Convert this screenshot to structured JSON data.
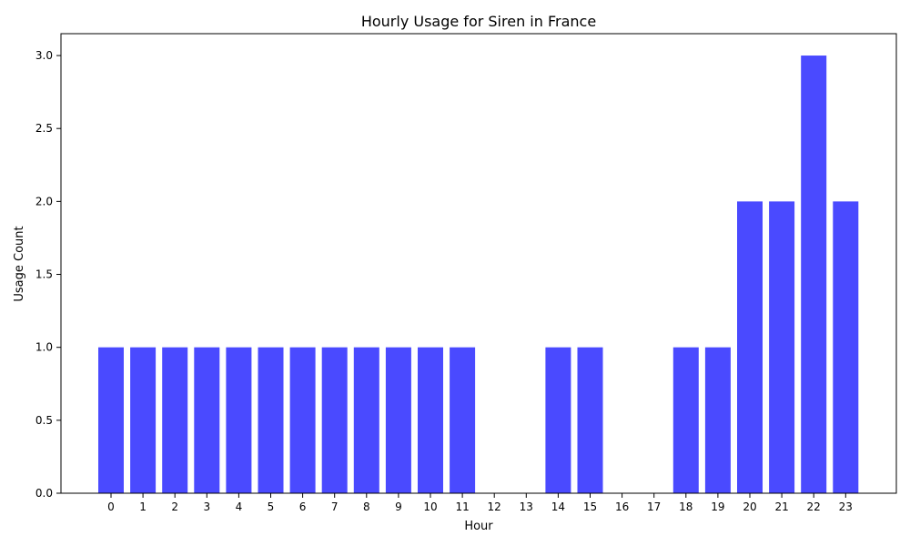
{
  "chart_data": {
    "type": "bar",
    "title": "Hourly Usage for Siren in France",
    "xlabel": "Hour",
    "ylabel": "Usage Count",
    "categories": [
      "0",
      "1",
      "2",
      "3",
      "4",
      "5",
      "6",
      "7",
      "8",
      "9",
      "10",
      "11",
      "12",
      "13",
      "14",
      "15",
      "16",
      "17",
      "18",
      "19",
      "20",
      "21",
      "22",
      "23"
    ],
    "values": [
      1,
      1,
      1,
      1,
      1,
      1,
      1,
      1,
      1,
      1,
      1,
      1,
      0,
      0,
      1,
      1,
      0,
      0,
      1,
      1,
      2,
      2,
      3,
      2
    ],
    "ylim": [
      0,
      3.15
    ],
    "yticks": [
      "0.0",
      "0.5",
      "1.0",
      "1.5",
      "2.0",
      "2.5",
      "3.0"
    ],
    "bar_color": "#4a4aff",
    "grid": false,
    "legend": "none"
  }
}
